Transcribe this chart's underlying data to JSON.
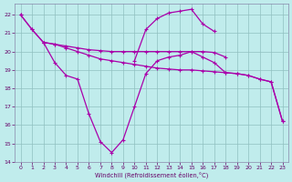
{
  "xlabel": "Windchill (Refroidissement éolien,°C)",
  "bg_color": "#c0ecec",
  "grid_color": "#90c0c0",
  "line_color": "#aa00aa",
  "spine_color": "#8888aa",
  "tick_color": "#660066",
  "xlim": [
    -0.5,
    23.5
  ],
  "ylim": [
    14,
    22.6
  ],
  "xticks": [
    0,
    1,
    2,
    3,
    4,
    5,
    6,
    7,
    8,
    9,
    10,
    11,
    12,
    13,
    14,
    15,
    16,
    17,
    18,
    19,
    20,
    21,
    22,
    23
  ],
  "yticks": [
    14,
    15,
    16,
    17,
    18,
    19,
    20,
    21,
    22
  ],
  "line1_x": [
    0,
    1,
    2,
    3,
    4,
    5,
    6,
    7,
    8,
    9,
    10,
    11,
    12,
    13,
    14,
    15,
    16,
    17,
    18
  ],
  "line1_y": [
    22.0,
    21.2,
    20.5,
    20.4,
    20.3,
    20.2,
    20.1,
    20.05,
    20.0,
    20.0,
    20.0,
    20.0,
    20.0,
    20.0,
    20.0,
    20.0,
    20.0,
    19.95,
    19.7
  ],
  "line2_x": [
    2,
    3,
    4,
    5,
    6,
    7,
    8,
    9,
    10,
    11,
    12,
    13,
    14,
    15,
    16,
    17,
    18,
    19,
    20,
    21,
    22,
    23
  ],
  "line2_y": [
    20.5,
    20.4,
    20.2,
    20.0,
    19.8,
    19.6,
    19.5,
    19.4,
    19.3,
    19.2,
    19.1,
    19.05,
    19.0,
    19.0,
    18.95,
    18.9,
    18.85,
    18.8,
    18.7,
    18.5,
    18.35,
    16.2
  ],
  "line3_x": [
    0,
    1,
    2,
    3,
    4,
    5,
    6,
    7,
    8,
    9,
    10,
    11,
    12,
    13,
    14,
    15,
    16,
    17,
    18,
    19,
    20,
    21,
    22,
    23
  ],
  "line3_y": [
    22.0,
    21.2,
    20.5,
    19.4,
    18.7,
    18.5,
    16.6,
    15.1,
    14.5,
    15.2,
    17.0,
    18.8,
    19.5,
    19.7,
    19.8,
    20.0,
    19.7,
    19.4,
    18.85,
    18.8,
    18.7,
    18.5,
    18.35,
    16.2
  ],
  "line4_x": [
    10,
    11,
    12,
    13,
    14,
    15,
    16,
    17
  ],
  "line4_y": [
    19.5,
    21.2,
    21.8,
    22.1,
    22.2,
    22.3,
    21.5,
    21.1
  ]
}
